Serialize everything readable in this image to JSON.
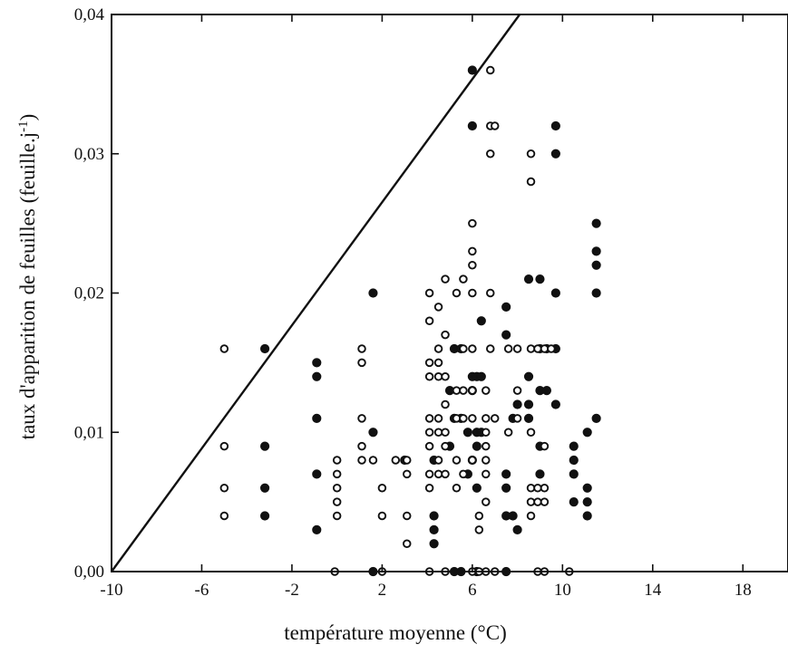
{
  "chart_data": {
    "type": "scatter",
    "title": "",
    "xlabel": "température moyenne (°C)",
    "ylabel_main": "taux d'apparition de feuilles (feuille.j",
    "ylabel_sup": "-1",
    "ylabel_close": ")",
    "xlim": [
      -10,
      20
    ],
    "ylim": [
      0,
      0.04
    ],
    "x_ticks": [
      -10,
      -6,
      -2,
      2,
      6,
      10,
      14,
      18
    ],
    "x_tick_labels": [
      "-10",
      "-6",
      "-2",
      "2",
      "6",
      "10",
      "14",
      "18"
    ],
    "y_ticks": [
      0,
      0.01,
      0.02,
      0.03,
      0.04
    ],
    "y_tick_labels": [
      "0,00",
      "0,01",
      "0,02",
      "0,03",
      "0,04"
    ],
    "grid": false,
    "legend": "none",
    "colors": {
      "axis": "#111111",
      "marker": "#111111",
      "background": "#ffffff"
    },
    "line": {
      "x": [
        -10,
        8.1
      ],
      "y": [
        0,
        0.04
      ]
    },
    "series": [
      {
        "marker": "filled-circle",
        "points": [
          [
            -3.2,
            0.016
          ],
          [
            -3.2,
            0.009
          ],
          [
            -3.2,
            0.006
          ],
          [
            -3.2,
            0.004
          ],
          [
            -0.9,
            0.015
          ],
          [
            -0.9,
            0.014
          ],
          [
            -0.9,
            0.011
          ],
          [
            -0.9,
            0.007
          ],
          [
            -0.9,
            0.003
          ],
          [
            1.6,
            0.02
          ],
          [
            1.6,
            0.01
          ],
          [
            1.6,
            0.0
          ],
          [
            3.0,
            0.008
          ],
          [
            4.3,
            0.008
          ],
          [
            4.3,
            0.004
          ],
          [
            4.3,
            0.003
          ],
          [
            4.3,
            0.002
          ],
          [
            5.0,
            0.013
          ],
          [
            5.0,
            0.009
          ],
          [
            5.2,
            0.016
          ],
          [
            5.2,
            0.011
          ],
          [
            5.2,
            0.0
          ],
          [
            5.5,
            0.016
          ],
          [
            5.5,
            0.011
          ],
          [
            5.5,
            0.0
          ],
          [
            5.8,
            0.01
          ],
          [
            5.8,
            0.007
          ],
          [
            6.0,
            0.036
          ],
          [
            6.0,
            0.032
          ],
          [
            6.0,
            0.014
          ],
          [
            6.0,
            0.013
          ],
          [
            6.0,
            0.008
          ],
          [
            6.2,
            0.014
          ],
          [
            6.2,
            0.01
          ],
          [
            6.2,
            0.009
          ],
          [
            6.2,
            0.006
          ],
          [
            6.2,
            0.0
          ],
          [
            6.4,
            0.018
          ],
          [
            6.4,
            0.014
          ],
          [
            6.4,
            0.01
          ],
          [
            7.5,
            0.019
          ],
          [
            7.5,
            0.017
          ],
          [
            7.5,
            0.007
          ],
          [
            7.5,
            0.006
          ],
          [
            7.5,
            0.004
          ],
          [
            7.5,
            0.0
          ],
          [
            7.8,
            0.004
          ],
          [
            7.8,
            0.011
          ],
          [
            8.0,
            0.012
          ],
          [
            8.0,
            0.003
          ],
          [
            8.5,
            0.021
          ],
          [
            8.5,
            0.014
          ],
          [
            8.5,
            0.012
          ],
          [
            8.5,
            0.011
          ],
          [
            9.0,
            0.021
          ],
          [
            9.0,
            0.016
          ],
          [
            9.0,
            0.013
          ],
          [
            9.0,
            0.009
          ],
          [
            9.0,
            0.007
          ],
          [
            9.3,
            0.016
          ],
          [
            9.3,
            0.013
          ],
          [
            9.7,
            0.032
          ],
          [
            9.7,
            0.03
          ],
          [
            9.7,
            0.02
          ],
          [
            9.7,
            0.016
          ],
          [
            9.7,
            0.012
          ],
          [
            10.5,
            0.009
          ],
          [
            10.5,
            0.008
          ],
          [
            10.5,
            0.007
          ],
          [
            10.5,
            0.005
          ],
          [
            11.1,
            0.01
          ],
          [
            11.1,
            0.006
          ],
          [
            11.1,
            0.005
          ],
          [
            11.1,
            0.004
          ],
          [
            11.5,
            0.025
          ],
          [
            11.5,
            0.023
          ],
          [
            11.5,
            0.022
          ],
          [
            11.5,
            0.02
          ],
          [
            11.5,
            0.011
          ]
        ]
      },
      {
        "marker": "open-circle",
        "points": [
          [
            -5.0,
            0.016
          ],
          [
            -5.0,
            0.009
          ],
          [
            -5.0,
            0.006
          ],
          [
            -5.0,
            0.004
          ],
          [
            -0.1,
            0.0
          ],
          [
            0.0,
            0.008
          ],
          [
            0.0,
            0.007
          ],
          [
            0.0,
            0.006
          ],
          [
            0.0,
            0.005
          ],
          [
            0.0,
            0.004
          ],
          [
            1.1,
            0.016
          ],
          [
            1.1,
            0.015
          ],
          [
            1.1,
            0.011
          ],
          [
            1.1,
            0.009
          ],
          [
            1.1,
            0.008
          ],
          [
            1.6,
            0.008
          ],
          [
            2.0,
            0.006
          ],
          [
            2.0,
            0.004
          ],
          [
            2.0,
            0.0
          ],
          [
            2.6,
            0.008
          ],
          [
            3.1,
            0.008
          ],
          [
            3.1,
            0.007
          ],
          [
            3.1,
            0.004
          ],
          [
            3.1,
            0.002
          ],
          [
            4.1,
            0.02
          ],
          [
            4.1,
            0.018
          ],
          [
            4.1,
            0.015
          ],
          [
            4.1,
            0.014
          ],
          [
            4.1,
            0.011
          ],
          [
            4.1,
            0.01
          ],
          [
            4.1,
            0.009
          ],
          [
            4.1,
            0.007
          ],
          [
            4.1,
            0.006
          ],
          [
            4.1,
            0.0
          ],
          [
            4.5,
            0.019
          ],
          [
            4.5,
            0.016
          ],
          [
            4.5,
            0.015
          ],
          [
            4.5,
            0.014
          ],
          [
            4.5,
            0.011
          ],
          [
            4.5,
            0.01
          ],
          [
            4.5,
            0.008
          ],
          [
            4.5,
            0.007
          ],
          [
            4.8,
            0.021
          ],
          [
            4.8,
            0.017
          ],
          [
            4.8,
            0.014
          ],
          [
            4.8,
            0.012
          ],
          [
            4.8,
            0.01
          ],
          [
            4.8,
            0.009
          ],
          [
            4.8,
            0.007
          ],
          [
            4.8,
            0.0
          ],
          [
            5.3,
            0.02
          ],
          [
            5.3,
            0.013
          ],
          [
            5.3,
            0.011
          ],
          [
            5.3,
            0.008
          ],
          [
            5.3,
            0.006
          ],
          [
            5.6,
            0.021
          ],
          [
            5.6,
            0.016
          ],
          [
            5.6,
            0.013
          ],
          [
            5.6,
            0.011
          ],
          [
            5.6,
            0.007
          ],
          [
            6.0,
            0.025
          ],
          [
            6.0,
            0.023
          ],
          [
            6.0,
            0.022
          ],
          [
            6.0,
            0.02
          ],
          [
            6.0,
            0.016
          ],
          [
            6.0,
            0.013
          ],
          [
            6.0,
            0.011
          ],
          [
            6.0,
            0.008
          ],
          [
            6.0,
            0.0
          ],
          [
            6.3,
            0.004
          ],
          [
            6.3,
            0.003
          ],
          [
            6.3,
            0.0
          ],
          [
            6.6,
            0.013
          ],
          [
            6.6,
            0.011
          ],
          [
            6.6,
            0.01
          ],
          [
            6.6,
            0.009
          ],
          [
            6.6,
            0.008
          ],
          [
            6.6,
            0.007
          ],
          [
            6.6,
            0.005
          ],
          [
            6.6,
            0.0
          ],
          [
            6.8,
            0.036
          ],
          [
            6.8,
            0.032
          ],
          [
            6.8,
            0.03
          ],
          [
            6.8,
            0.02
          ],
          [
            6.8,
            0.016
          ],
          [
            7.0,
            0.032
          ],
          [
            7.0,
            0.011
          ],
          [
            7.0,
            0.0
          ],
          [
            7.6,
            0.016
          ],
          [
            7.6,
            0.01
          ],
          [
            8.0,
            0.016
          ],
          [
            8.0,
            0.013
          ],
          [
            8.0,
            0.011
          ],
          [
            8.6,
            0.03
          ],
          [
            8.6,
            0.028
          ],
          [
            8.6,
            0.016
          ],
          [
            8.6,
            0.01
          ],
          [
            8.6,
            0.006
          ],
          [
            8.6,
            0.005
          ],
          [
            8.6,
            0.004
          ],
          [
            8.9,
            0.016
          ],
          [
            8.9,
            0.006
          ],
          [
            8.9,
            0.005
          ],
          [
            8.9,
            0.0
          ],
          [
            9.2,
            0.016
          ],
          [
            9.2,
            0.009
          ],
          [
            9.2,
            0.006
          ],
          [
            9.2,
            0.005
          ],
          [
            9.2,
            0.0
          ],
          [
            9.5,
            0.016
          ],
          [
            10.3,
            0.0
          ]
        ]
      }
    ]
  }
}
